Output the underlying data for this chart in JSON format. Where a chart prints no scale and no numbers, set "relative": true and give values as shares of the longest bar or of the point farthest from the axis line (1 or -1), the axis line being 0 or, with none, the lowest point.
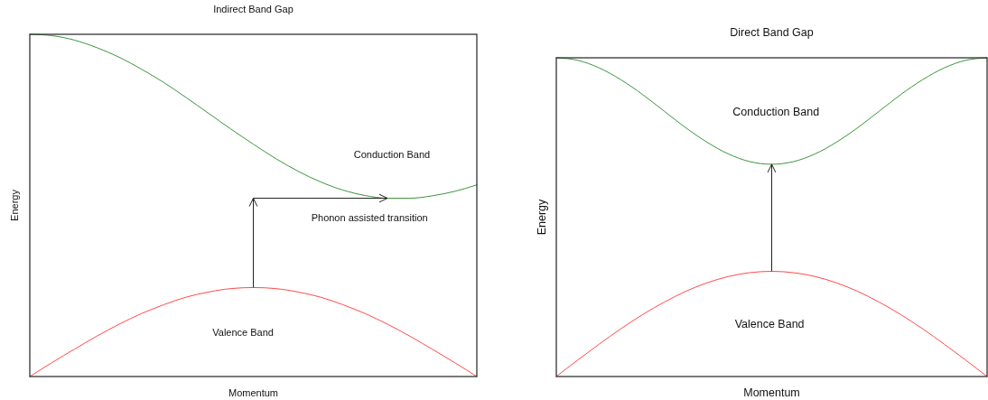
{
  "chart_data": [
    {
      "type": "line",
      "title": "Indirect Band Gap",
      "xlabel": "Momentum",
      "ylabel": "Energy",
      "relative": true,
      "categories": [
        null,
        null,
        null,
        null,
        null,
        null,
        null,
        null,
        null,
        null,
        null,
        null,
        null,
        null,
        null,
        null,
        null,
        null,
        null,
        null,
        null
      ],
      "series": [
        {
          "color": "#3b953b",
          "values": [
            1,
            0.996,
            0.983,
            0.961,
            0.933,
            0.898,
            0.859,
            0.815,
            0.769,
            0.723,
            0.679,
            0.637,
            0.6,
            0.569,
            0.545,
            0.529,
            0.521,
            0.521,
            0.528,
            0.541,
            0.56
          ]
        },
        {
          "color": "#ff4a4a",
          "values": [
            0,
            0.041,
            0.08,
            0.118,
            0.153,
            0.184,
            0.21,
            0.232,
            0.247,
            0.257,
            0.26,
            0.257,
            0.247,
            0.232,
            0.21,
            0.184,
            0.153,
            0.118,
            0.08,
            0.041,
            0
          ]
        }
      ],
      "annotations": [
        "Conduction Band",
        "Phonon assisted transition",
        "Valence Band"
      ]
    },
    {
      "type": "line",
      "title": "Direct Band Gap",
      "xlabel": "Momentum",
      "ylabel": "Energy",
      "relative": true,
      "categories": [
        null,
        null,
        null,
        null,
        null,
        null,
        null,
        null,
        null,
        null,
        null,
        null,
        null,
        null,
        null,
        null,
        null,
        null,
        null,
        null,
        null
      ],
      "series": [
        {
          "color": "#3b953b",
          "values": [
            1,
            0.992,
            0.968,
            0.931,
            0.885,
            0.833,
            0.781,
            0.735,
            0.698,
            0.674,
            0.666,
            0.674,
            0.698,
            0.735,
            0.781,
            0.833,
            0.885,
            0.931,
            0.968,
            0.992,
            1
          ]
        },
        {
          "color": "#ff4a4a",
          "values": [
            0,
            0.052,
            0.102,
            0.15,
            0.194,
            0.233,
            0.267,
            0.294,
            0.314,
            0.326,
            0.33,
            0.326,
            0.314,
            0.294,
            0.267,
            0.233,
            0.194,
            0.15,
            0.102,
            0.052,
            0
          ]
        }
      ],
      "annotations": [
        "Conduction Band",
        "Valence Band"
      ]
    }
  ]
}
